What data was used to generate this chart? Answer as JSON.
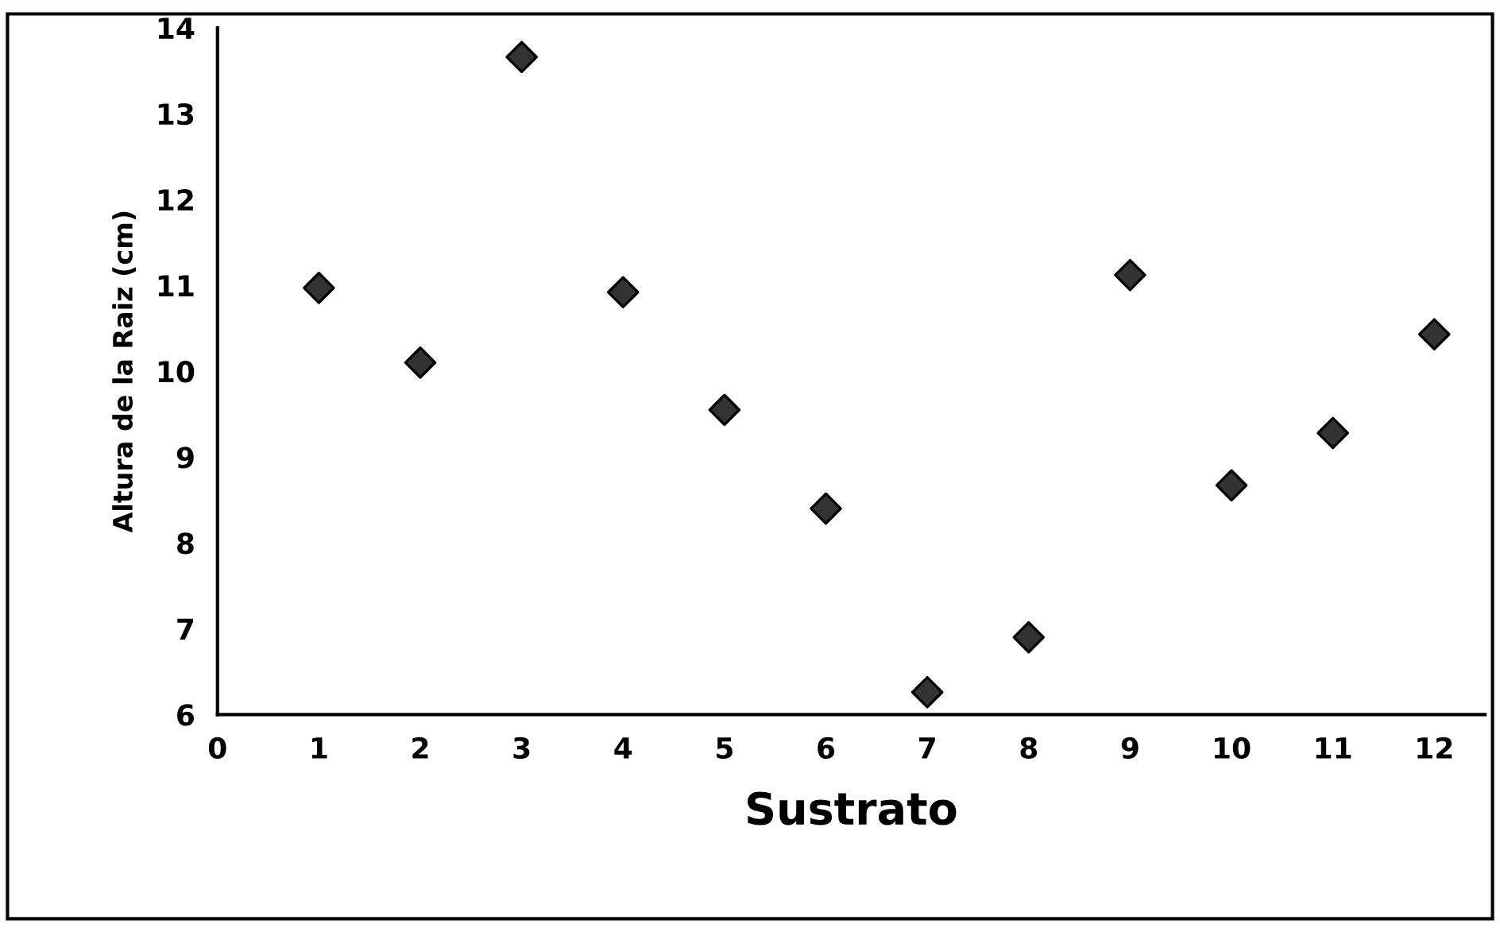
{
  "chart_data": {
    "type": "scatter",
    "xlabel": "Sustrato",
    "ylabel": "Altura de la Raiz (cm)",
    "x": [
      1,
      2,
      3,
      4,
      5,
      6,
      7,
      8,
      9,
      10,
      11,
      12
    ],
    "values": [
      10.97,
      10.1,
      13.66,
      10.92,
      9.55,
      8.4,
      6.26,
      6.9,
      11.12,
      8.67,
      9.28,
      10.43
    ],
    "color": "#333333",
    "marker": "diamond",
    "xlim": [
      0,
      12.5
    ],
    "ylim": [
      6,
      14
    ],
    "xticks": [
      0,
      1,
      2,
      3,
      4,
      5,
      6,
      7,
      8,
      9,
      10,
      11,
      12
    ],
    "yticks": [
      6,
      7,
      8,
      9,
      10,
      11,
      12,
      13,
      14
    ],
    "grid": false,
    "legend": false
  }
}
